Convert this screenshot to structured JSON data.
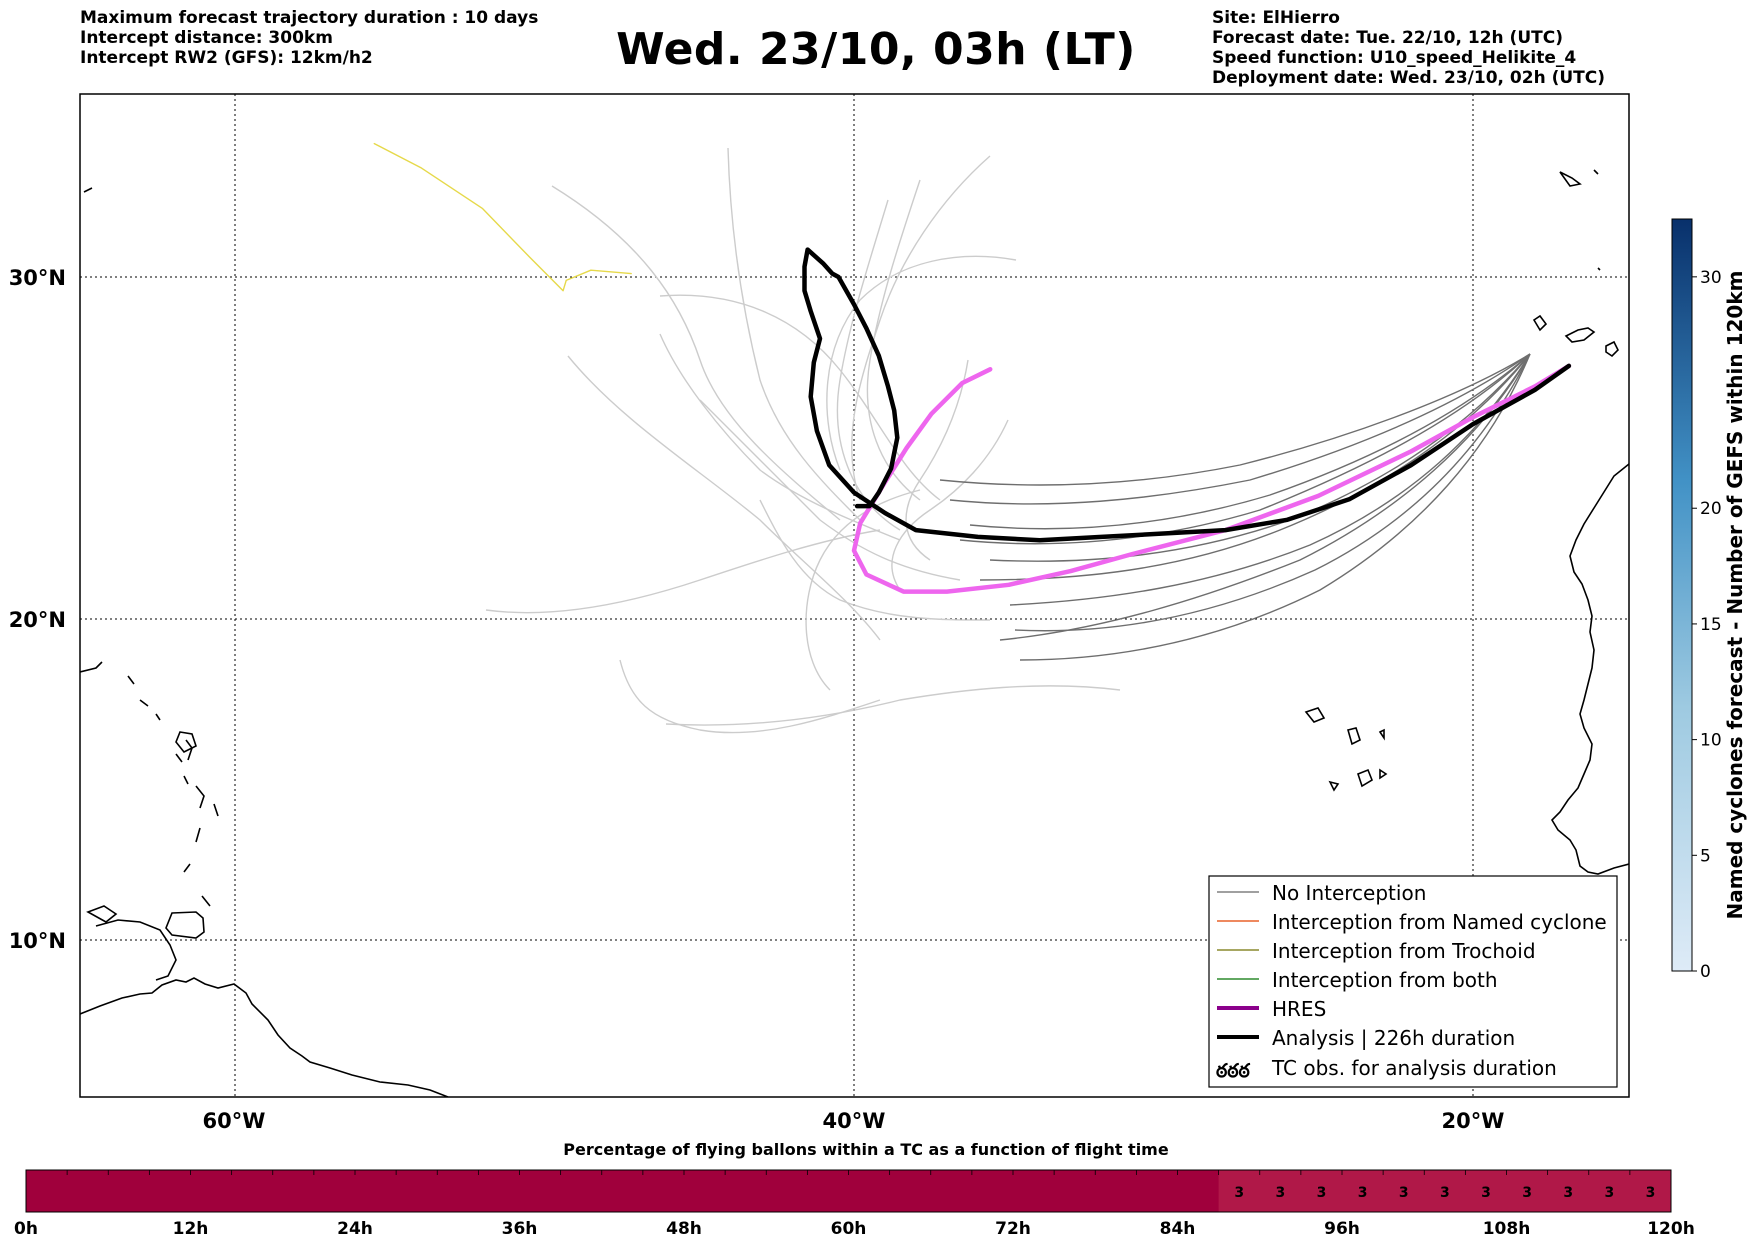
{
  "header": {
    "left_lines": [
      "Maximum forecast trajectory duration : 10 days",
      "Intercept distance: 300km",
      "Intercept RW2 (GFS):  12km/h2"
    ],
    "title": "Wed. 23/10, 03h (LT)",
    "right_lines": [
      "Site: ElHierro",
      "Forecast date: Tue. 22/10, 12h (UTC)",
      "Speed function: U10_speed_Helikite_4",
      "Deployment date: Wed. 23/10, 02h (UTC)"
    ]
  },
  "map": {
    "lon_labels": [
      "60°W",
      "40°W",
      "20°W"
    ],
    "lat_labels": [
      "30°N",
      "20°N",
      "10°N"
    ],
    "legend": [
      {
        "label": "No Interception",
        "color": "#808080",
        "style": "thin"
      },
      {
        "label": "Interception from Named cyclone",
        "color": "#e8622a",
        "style": "thin"
      },
      {
        "label": "Interception from Trochoid",
        "color": "#8a8a2e",
        "style": "thin"
      },
      {
        "label": "Interception from both",
        "color": "#2e8b2e",
        "style": "thin"
      },
      {
        "label": "HRES",
        "color": "#8b008b",
        "style": "thick"
      },
      {
        "label": "Analysis | 226h duration",
        "color": "#000000",
        "style": "thick"
      },
      {
        "label": "TC obs. for analysis duration",
        "color": "#000000",
        "style": "symbol"
      }
    ],
    "colorbar": {
      "label": "Named cyclones forecast - Number of GEFS within 120km",
      "ticks": [
        "0",
        "5",
        "10",
        "15",
        "20",
        "30"
      ]
    }
  },
  "chart_data": {
    "type": "line",
    "title": "Wed. 23/10, 03h (LT)",
    "xlim": [
      -65,
      -15
    ],
    "ylim": [
      5,
      34.5
    ],
    "xticks": [
      -60,
      -40,
      -20
    ],
    "yticks": [
      10,
      20,
      30
    ],
    "grid": true,
    "legend_position": "bottom-right",
    "series": [
      {
        "name": "HRES",
        "color": "#ee66ee",
        "x": [
          -16.9,
          -18,
          -20,
          -22,
          -25,
          -28,
          -31,
          -33,
          -35,
          -37,
          -38.4,
          -39.6,
          -40,
          -39.8,
          -39,
          -38.3,
          -37.5,
          -36.5,
          -35.6
        ],
        "y": [
          27.4,
          26.8,
          25.9,
          24.9,
          23.6,
          22.6,
          21.9,
          21.4,
          21.0,
          20.8,
          20.8,
          21.3,
          22.0,
          22.8,
          24.0,
          25.0,
          26.0,
          26.9,
          27.3
        ]
      },
      {
        "name": "Analysis | 226h duration",
        "color": "#000000",
        "x": [
          -16.9,
          -18,
          -20,
          -22,
          -24,
          -26,
          -28,
          -30,
          -32,
          -34,
          -36,
          -38,
          -39,
          -40,
          -40.8,
          -41.2,
          -41.4,
          -41.3,
          -41.1,
          -41.4,
          -41.6,
          -41.6,
          -41.5,
          -41,
          -40.7,
          -40.5,
          -40,
          -39.6,
          -39.2,
          -38.9,
          -38.7,
          -38.6,
          -38.8,
          -39.2,
          -39.5,
          -39.9
        ],
        "y": [
          27.4,
          26.7,
          25.7,
          24.5,
          23.5,
          22.9,
          22.6,
          22.5,
          22.4,
          22.3,
          22.4,
          22.6,
          23.1,
          23.7,
          24.5,
          25.5,
          26.5,
          27.5,
          28.2,
          29,
          29.6,
          30.3,
          30.8,
          30.4,
          30.1,
          30.0,
          29.2,
          28.5,
          27.7,
          26.8,
          26.1,
          25.3,
          24.4,
          23.7,
          23.3,
          23.3
        ]
      },
      {
        "name": "",
        "color": "#e6d94a",
        "x": [
          -55.5,
          -54,
          -52,
          -50.5,
          -49.4,
          -49.3,
          -48.5,
          -47.2
        ],
        "y": [
          33.9,
          33.2,
          32.0,
          30.6,
          29.6,
          29.9,
          30.2,
          30.1
        ]
      }
    ],
    "probability_bar": {
      "title": "Percentage of flying ballons within a TC as a function of flight time",
      "ticks": [
        "0h",
        "12h",
        "24h",
        "36h",
        "48h",
        "60h",
        "72h",
        "84h",
        "96h",
        "108h",
        "120h"
      ],
      "cells": [
        "",
        "",
        "",
        "",
        "",
        "",
        "",
        "",
        "",
        "",
        "",
        "",
        "",
        "",
        "",
        "",
        "",
        "",
        "",
        "",
        "",
        "",
        "",
        "",
        "",
        "",
        "",
        "",
        "",
        "3",
        "3",
        "3",
        "3",
        "3",
        "3",
        "3",
        "3",
        "3",
        "3",
        "3"
      ]
    }
  }
}
